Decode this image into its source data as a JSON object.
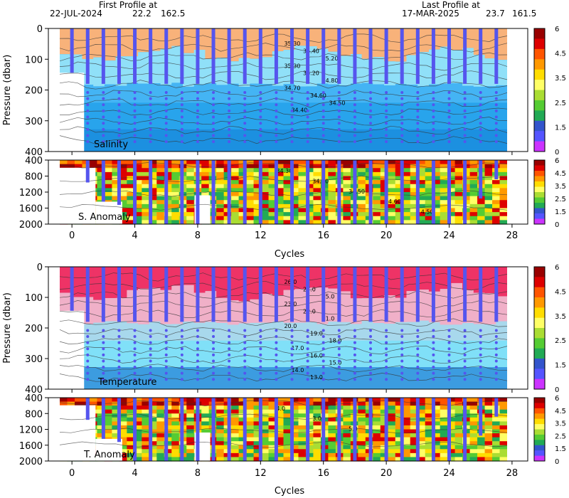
{
  "header": {
    "first_label": "First Profile at",
    "first_date": "22-JUL-2024",
    "first_lat": "22.2",
    "first_lon": "162.5",
    "last_label": "Last Profile at",
    "last_date": "17-MAR-2025",
    "last_lat": "23.7",
    "last_lon": "161.5"
  },
  "chart_data": [
    {
      "id": "salinity",
      "type": "heatmap",
      "label": "Salinity",
      "ylabel": "Pressure (dbar)",
      "ylim": [
        0,
        400
      ],
      "yticks": [
        "0",
        "100",
        "200",
        "300",
        "400"
      ],
      "contour_labels": [
        "35.30",
        "35.40",
        "35.20",
        "35.30",
        "35.20",
        "34.80",
        "34.70",
        "34.60",
        "34.50",
        "34.40"
      ]
    },
    {
      "id": "salinity-anomaly",
      "type": "heatmap",
      "label": "S. Anomaly",
      "ylim": [
        400,
        2000
      ],
      "yticks": [
        "400",
        "800",
        "1200",
        "1600",
        "2000"
      ],
      "contour_labels": [
        "34.30",
        "34.40",
        "34.50",
        "34.60",
        "4.50"
      ]
    },
    {
      "id": "temperature",
      "type": "heatmap",
      "label": "Temperature",
      "ylabel": "Pressure (dbar)",
      "ylim": [
        0,
        400
      ],
      "yticks": [
        "0",
        "100",
        "200",
        "300",
        "400"
      ],
      "contour_labels": [
        "26.0",
        "27.0",
        "25.0",
        "23.0",
        "22.0",
        "21.0",
        "20.0",
        "19.0",
        "18.0",
        "17.0",
        "16.0",
        "15.0",
        "14.0",
        "13.0"
      ]
    },
    {
      "id": "temperature-anomaly",
      "type": "heatmap",
      "label": "T. Anomaly",
      "ylim": [
        400,
        2000
      ],
      "yticks": [
        "400",
        "800",
        "1200",
        "1600",
        "2000"
      ],
      "contour_labels": [
        "4.0",
        "3.0",
        "5.0"
      ]
    }
  ],
  "x_axis": {
    "label": "Cycles",
    "xlim": [
      -1.5,
      29
    ],
    "ticks": [
      "0",
      "4",
      "8",
      "12",
      "16",
      "20",
      "24",
      "28"
    ],
    "tick_values": [
      0,
      4,
      8,
      12,
      16,
      20,
      24,
      28
    ]
  },
  "colorbar": {
    "tick_labels": [
      "6",
      "4.5",
      "3.5",
      "2.5",
      "1.5",
      "0"
    ],
    "colors": [
      "#990000",
      "#dd0000",
      "#ff5500",
      "#ff9900",
      "#ffdd00",
      "#ffff66",
      "#aadd33",
      "#55cc33",
      "#22aa55",
      "#3355cc",
      "#5555ff",
      "#cc33ff"
    ]
  },
  "profiles": {
    "cycles": [
      0,
      1,
      2,
      3,
      4,
      5,
      6,
      7,
      8,
      9,
      10,
      11,
      12,
      13,
      14,
      15,
      16,
      17,
      18,
      19,
      20,
      21,
      22,
      23,
      24,
      25,
      26,
      27
    ],
    "color": "#5555ee"
  }
}
